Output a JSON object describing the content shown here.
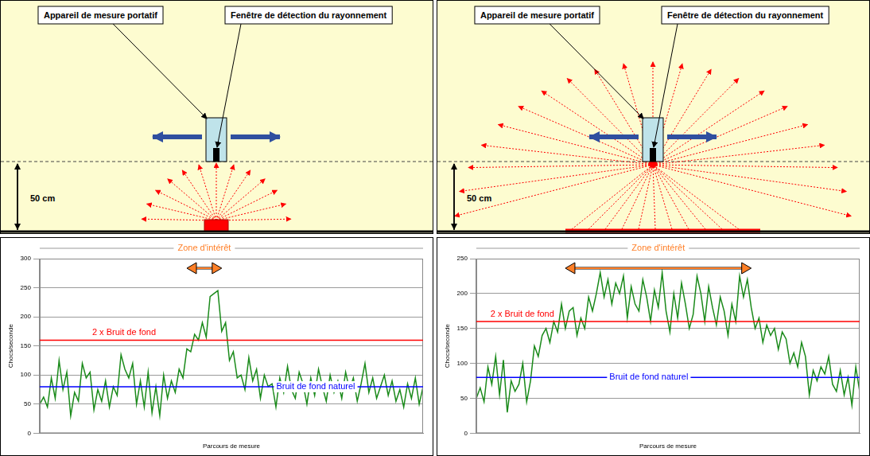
{
  "diagrams": [
    {
      "device_label": "Appareil de mesure portatif",
      "window_label": "Fenêtre de détection du rayonnement",
      "height_label": "50 cm"
    },
    {
      "device_label": "Appareil de mesure portatif",
      "window_label": "Fenêtre de détection du rayonnement",
      "height_label": "50 cm"
    }
  ],
  "chart_data": [
    {
      "type": "line",
      "y_label": "Chocs/seconde",
      "x_label": "Parcours de mesure",
      "x": [
        0,
        1,
        2,
        3,
        4,
        5,
        6,
        7,
        8,
        9,
        10,
        11,
        12,
        13,
        14,
        15,
        16,
        17,
        18,
        19,
        20,
        21,
        22,
        23,
        24,
        25,
        26,
        27,
        28,
        29,
        30,
        31,
        32,
        33,
        34,
        35,
        36,
        37,
        38,
        39,
        40,
        41,
        42,
        43,
        44,
        45,
        46,
        47,
        48,
        49,
        50,
        51,
        52,
        53,
        54,
        55,
        56,
        57,
        58,
        59,
        60,
        61,
        62,
        63,
        64,
        65,
        66,
        67,
        68,
        69,
        70,
        71,
        72,
        73,
        74,
        75,
        76,
        77,
        78,
        79,
        80,
        81,
        82,
        83,
        84,
        85,
        86,
        87,
        88,
        89,
        90,
        91,
        92,
        93,
        94,
        95,
        96,
        97,
        98,
        99
      ],
      "values": [
        50,
        62,
        45,
        95,
        60,
        125,
        75,
        105,
        30,
        70,
        55,
        120,
        95,
        105,
        40,
        75,
        55,
        90,
        45,
        80,
        65,
        135,
        110,
        95,
        120,
        50,
        90,
        45,
        105,
        35,
        80,
        30,
        100,
        60,
        90,
        70,
        110,
        95,
        145,
        140,
        170,
        160,
        190,
        165,
        235,
        240,
        245,
        175,
        190,
        125,
        140,
        95,
        100,
        75,
        130,
        90,
        110,
        60,
        100,
        80,
        85,
        45,
        95,
        70,
        115,
        75,
        60,
        105,
        85,
        50,
        95,
        65,
        110,
        80,
        55,
        100,
        70,
        90,
        60,
        105,
        75,
        95,
        55,
        85,
        120,
        70,
        95,
        60,
        80,
        100,
        65,
        90,
        55,
        75,
        45,
        85,
        60,
        95,
        50,
        80
      ],
      "color": "#1a8a1a",
      "xlim": [
        0,
        99
      ],
      "ylim": [
        0,
        300
      ],
      "yticks": [
        0,
        50,
        100,
        150,
        200,
        250,
        300
      ],
      "grid": true,
      "tick_labels": "y",
      "reference_lines": [
        {
          "value": 160,
          "label": "2 x Bruit de fond",
          "color": "#ff0000"
        },
        {
          "value": 80,
          "label": "Bruit de fond naturel",
          "color": "#0000ff"
        }
      ],
      "zone": {
        "label": "Zone d'intérêt",
        "from": 38,
        "to": 47,
        "color": "#ff7f27"
      }
    },
    {
      "type": "line",
      "y_label": "Chocs/seconde",
      "x_label": "Parcours de mesure",
      "x": [
        0,
        1,
        2,
        3,
        4,
        5,
        6,
        7,
        8,
        9,
        10,
        11,
        12,
        13,
        14,
        15,
        16,
        17,
        18,
        19,
        20,
        21,
        22,
        23,
        24,
        25,
        26,
        27,
        28,
        29,
        30,
        31,
        32,
        33,
        34,
        35,
        36,
        37,
        38,
        39,
        40,
        41,
        42,
        43,
        44,
        45,
        46,
        47,
        48,
        49,
        50,
        51,
        52,
        53,
        54,
        55,
        56,
        57,
        58,
        59,
        60,
        61,
        62,
        63,
        64,
        65,
        66,
        67,
        68,
        69,
        70,
        71,
        72,
        73,
        74,
        75,
        76,
        77,
        78,
        79,
        80,
        81,
        82,
        83,
        84,
        85,
        86,
        87,
        88,
        89,
        90,
        91,
        92,
        93,
        94,
        95,
        96,
        97,
        98,
        99
      ],
      "values": [
        50,
        65,
        45,
        95,
        70,
        110,
        55,
        105,
        30,
        75,
        60,
        70,
        100,
        45,
        75,
        125,
        110,
        140,
        150,
        130,
        160,
        145,
        185,
        150,
        175,
        180,
        140,
        165,
        150,
        195,
        175,
        200,
        230,
        195,
        220,
        185,
        215,
        200,
        225,
        165,
        210,
        185,
        175,
        220,
        195,
        160,
        205,
        180,
        230,
        175,
        145,
        200,
        165,
        215,
        185,
        150,
        170,
        225,
        200,
        160,
        210,
        180,
        155,
        195,
        175,
        140,
        185,
        160,
        225,
        195,
        220,
        180,
        150,
        165,
        130,
        155,
        140,
        150,
        120,
        145,
        135,
        100,
        115,
        95,
        130,
        110,
        55,
        90,
        75,
        95,
        85,
        110,
        70,
        60,
        90,
        55,
        80,
        40,
        95,
        60
      ],
      "color": "#1a8a1a",
      "xlim": [
        0,
        99
      ],
      "ylim": [
        0,
        250
      ],
      "yticks": [
        0,
        50,
        100,
        150,
        200,
        250
      ],
      "grid": true,
      "tick_labels": "y",
      "reference_lines": [
        {
          "value": 160,
          "label": "2 x Bruit de fond",
          "color": "#ff0000"
        },
        {
          "value": 80,
          "label": "Bruit de fond naturel",
          "color": "#0000ff"
        }
      ],
      "zone": {
        "label": "Zone d'intérêt",
        "from": 23,
        "to": 71,
        "color": "#ff7f27"
      }
    }
  ]
}
